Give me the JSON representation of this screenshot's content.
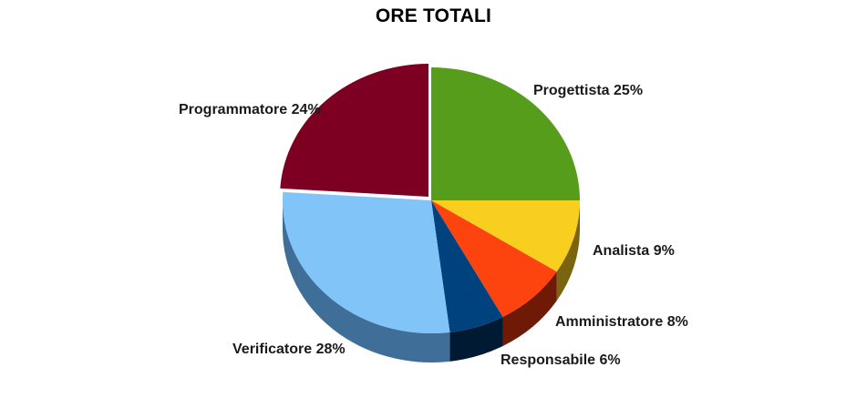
{
  "chart_data": {
    "type": "pie",
    "title": "ORE TOTALI",
    "slices": [
      {
        "name": "Progettista",
        "value": 25,
        "label": "Progettista 25%",
        "color": "#579d1c",
        "side": "#2e5a0c"
      },
      {
        "name": "Analista",
        "value": 9,
        "label": "Analista 9%",
        "color": "#f9cf1f",
        "side": "#7a6410"
      },
      {
        "name": "Amministratore",
        "value": 8,
        "label": "Amministratore 8%",
        "color": "#fd430e",
        "side": "#6e1a06"
      },
      {
        "name": "Responsabile",
        "value": 6,
        "label": "Responsabile 6%",
        "color": "#00427e",
        "side": "#001a33"
      },
      {
        "name": "Verificatore",
        "value": 28,
        "label": "Verificatore 28%",
        "color": "#80c4f8",
        "side": "#3f6f99"
      },
      {
        "name": "Programmatore",
        "value": 24,
        "label": "Programmatore 24%",
        "color": "#7d0023",
        "side": "#3c0010"
      }
    ],
    "legend": "none",
    "style": "3d"
  }
}
